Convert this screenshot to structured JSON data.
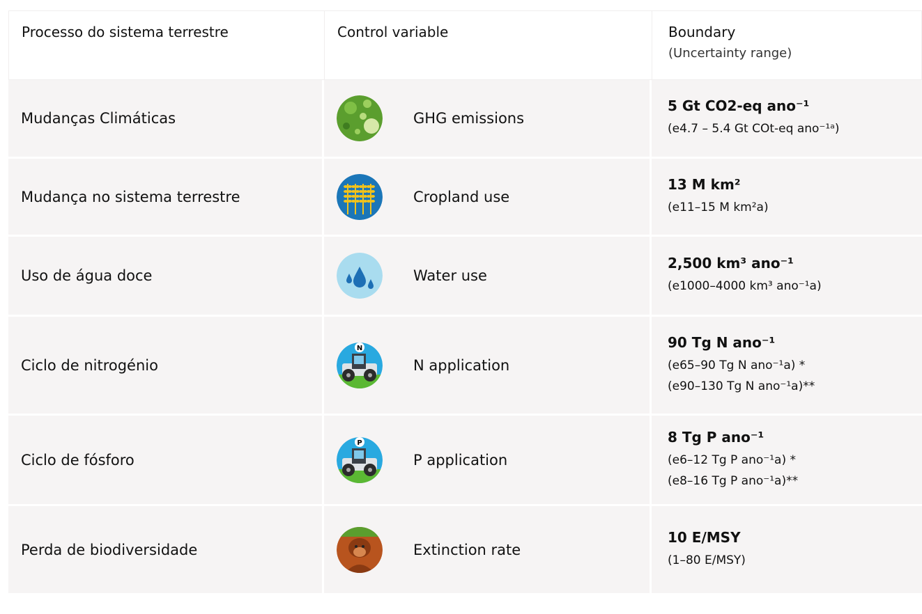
{
  "header": {
    "process": "Processo do sistema terrestre",
    "control": "Control variable",
    "boundary": "Boundary",
    "boundary_sub": "(Uncertainty range)"
  },
  "rows": [
    {
      "process": "Mudanças Climáticas",
      "control": "GHG emissions",
      "boundary": "5 Gt CO2-eq ano⁻¹",
      "range": [
        "(e4.7 – 5.4 Gt COt-eq ano⁻¹ᵃ)"
      ]
    },
    {
      "process": "Mudança no sistema terrestre",
      "control": "Cropland use",
      "boundary": "13 M km²",
      "range": [
        "(e11–15 M km²a)"
      ]
    },
    {
      "process": "Uso de água doce",
      "control": "Water use",
      "boundary": "2,500 km³ ano⁻¹",
      "range": [
        "(e1000–4000 km³ ano⁻¹a)"
      ]
    },
    {
      "process": "Ciclo de nitrogénio",
      "control": "N application",
      "icon_label": "N",
      "boundary": "90 Tg N ano⁻¹",
      "range": [
        "(e65–90 Tg N ano⁻¹a) *",
        "(e90–130 Tg N ano⁻¹a)**"
      ]
    },
    {
      "process": "Ciclo de fósforo",
      "control": "P application",
      "icon_label": "P",
      "boundary": "8 Tg P ano⁻¹",
      "range": [
        "(e6–12 Tg P ano⁻¹a) *",
        "(e8–16 Tg P ano⁻¹a)**"
      ]
    },
    {
      "process": "Perda de biodiversidade",
      "control": "Extinction rate",
      "boundary": "10 E/MSY",
      "range": [
        "(1–80 E/MSY)"
      ]
    }
  ]
}
